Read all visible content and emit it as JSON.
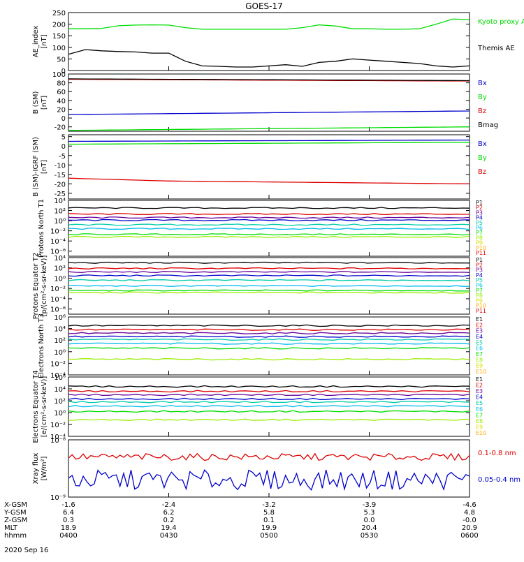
{
  "title": "GOES-17",
  "date_label": "2020 Sep 16",
  "colors": {
    "black": "#000000",
    "red": "#dd0000",
    "green": "#00dd00",
    "blue": "#0000cc",
    "cyan": "#00bbee",
    "teal": "#00ccaa",
    "lime": "#99ee00",
    "yellow": "#dddd00",
    "orange": "#ffaa00",
    "purple": "#660099",
    "magenta": "#cc00cc"
  },
  "orbit_table": {
    "rows": [
      {
        "label": "X-GSM",
        "values": [
          "-1.6",
          "-2.4",
          "-3.2",
          "-3.9",
          "-4.6"
        ]
      },
      {
        "label": "Y-GSM",
        "values": [
          "6.4",
          "6.2",
          "5.8",
          "5.3",
          "4.8"
        ]
      },
      {
        "label": "Z-GSM",
        "values": [
          "0.3",
          "0.2",
          "0.1",
          "0.0",
          "-0.0"
        ]
      },
      {
        "label": "MLT",
        "values": [
          "18.9",
          "19.4",
          "19.9",
          "20.4",
          "20.9"
        ]
      },
      {
        "label": "hhmm",
        "values": [
          "0400",
          "0430",
          "0500",
          "0530",
          "0600"
        ]
      }
    ]
  },
  "chart_data": [
    {
      "type": "line",
      "ylabel": "AE_index [nT]",
      "ylim": [
        0,
        250
      ],
      "yticks": [
        "0",
        "50",
        "100",
        "150",
        "200",
        "250"
      ],
      "x_range": [
        "04:00",
        "06:00"
      ],
      "series": [
        {
          "name": "Kyoto proxy AE",
          "color": "green",
          "values": [
            180,
            180,
            182,
            193,
            196,
            197,
            196,
            185,
            178,
            178,
            178,
            178,
            178,
            178,
            185,
            197,
            192,
            180,
            180,
            178,
            178,
            180,
            200,
            222,
            220
          ]
        },
        {
          "name": "Themis AE",
          "color": "black",
          "values": [
            70,
            90,
            85,
            82,
            80,
            75,
            75,
            40,
            20,
            18,
            15,
            15,
            20,
            25,
            18,
            35,
            40,
            50,
            45,
            40,
            35,
            30,
            20,
            15,
            20
          ]
        }
      ]
    },
    {
      "type": "line",
      "ylabel": "B (SM) [nT]",
      "ylim": [
        -30,
        100
      ],
      "yticks": [
        "-20",
        "0",
        "20",
        "40",
        "60",
        "80",
        "100"
      ],
      "series": [
        {
          "name": "Bx",
          "color": "blue",
          "values": [
            8,
            16
          ]
        },
        {
          "name": "By",
          "color": "green",
          "values": [
            -28,
            -20
          ]
        },
        {
          "name": "Bz",
          "color": "red",
          "values": [
            88,
            84
          ]
        },
        {
          "name": "Bmag",
          "color": "black",
          "values": [
            89,
            85
          ]
        }
      ]
    },
    {
      "type": "line",
      "ylabel": "B (SM)-IGRF (SM) [nT]",
      "ylim": [
        -28,
        6
      ],
      "yticks": [
        "-25",
        "-20",
        "-15",
        "-10",
        "-5",
        "0",
        "5"
      ],
      "series": [
        {
          "name": "Bx",
          "color": "blue",
          "values": [
            2.5,
            3.2
          ]
        },
        {
          "name": "By",
          "color": "green",
          "values": [
            1,
            2
          ]
        },
        {
          "name": "Bz",
          "color": "red",
          "values": [
            -17,
            -18.5,
            -19,
            -19.5,
            -20
          ]
        }
      ]
    },
    {
      "type": "line",
      "ylabel": "Protons North T1",
      "scale": "log",
      "ylim_exp": [
        -7,
        4
      ],
      "yticks": [
        "10⁻⁶",
        "10⁻⁴",
        "10⁻²",
        "10⁰",
        "10²",
        "10⁴"
      ],
      "channels": [
        "P1",
        "P2",
        "P3",
        "P4",
        "P5",
        "P6",
        "P7",
        "P8",
        "P9",
        "P10",
        "P11"
      ],
      "log_levels": [
        2.5,
        1.3,
        0.6,
        0.1,
        -0.8,
        -1.6,
        -2.7,
        -3.2
      ]
    },
    {
      "type": "line",
      "ylabel": "Protons Equator T2 [p/(cm²-s-sr-keV)]",
      "scale": "log",
      "ylim_exp": [
        -7,
        4
      ],
      "yticks": [
        "10⁻⁶",
        "10⁻⁴",
        "10⁻²",
        "10⁰",
        "10²",
        "10⁴"
      ],
      "channels": [
        "P1",
        "P2",
        "P3",
        "P4",
        "P5",
        "P6",
        "P7",
        "P8",
        "P9",
        "P10",
        "P11"
      ],
      "log_levels": [
        3,
        1.9,
        1.2,
        0.5,
        -0.4,
        -1.5,
        -2.4,
        -2.8
      ]
    },
    {
      "type": "line",
      "ylabel": "Electrons North T3",
      "scale": "log",
      "ylim_exp": [
        -4,
        6
      ],
      "yticks": [
        "10⁻⁴",
        "10⁻²",
        "10⁰",
        "10²",
        "10⁴",
        "10⁶"
      ],
      "channels": [
        "E1",
        "E2",
        "E3",
        "E4",
        "E5",
        "E6",
        "E7",
        "E8",
        "E9",
        "E10"
      ],
      "log_levels": [
        4.5,
        3.8,
        3.2,
        2.6,
        2.1,
        1.4,
        0.6,
        -1.3
      ]
    },
    {
      "type": "line",
      "ylabel": "Electrons Equator T4 [e/(cm²-s-sr-keV)]",
      "scale": "log",
      "ylim_exp": [
        -4,
        6
      ],
      "yticks": [
        "10⁻⁴",
        "10⁻²",
        "10⁰",
        "10²",
        "10⁴",
        "10⁶"
      ],
      "channels": [
        "E1",
        "E2",
        "E3",
        "E4",
        "E5",
        "E6",
        "E7",
        "E8",
        "E9",
        "E10"
      ],
      "log_levels": [
        4.4,
        3.6,
        3.0,
        2.3,
        1.8,
        1.1,
        0.2,
        -1.2
      ]
    },
    {
      "type": "line",
      "ylabel": "Xray flux [W/m²]",
      "scale": "log",
      "ylim_exp": [
        -9,
        -8
      ],
      "yticks": [
        "10⁻⁹",
        "10⁻⁸"
      ],
      "series": [
        {
          "name": "0.1-0.8 nm",
          "color": "red",
          "log_level": -8.3
        },
        {
          "name": "0.05-0.4 nm",
          "color": "blue",
          "log_level": -8.7
        }
      ]
    }
  ]
}
